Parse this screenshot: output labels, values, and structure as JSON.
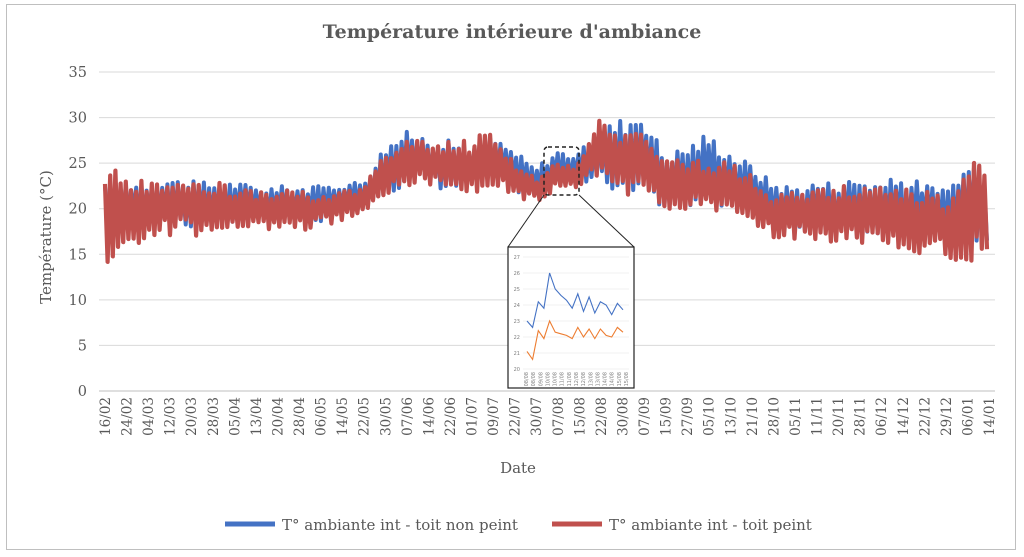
{
  "chart_data": {
    "type": "line",
    "title": "Température intérieure d'ambiance",
    "xlabel": "Date",
    "ylabel": "Température (°C)",
    "ylim": [
      0,
      35
    ],
    "yticks": [
      0,
      5,
      10,
      15,
      20,
      25,
      30,
      35
    ],
    "grid": true,
    "legend_position": "bottom",
    "x_tick_labels": [
      "16/02",
      "24/02",
      "04/03",
      "12/03",
      "20/03",
      "28/03",
      "05/04",
      "13/04",
      "20/04",
      "28/04",
      "06/05",
      "14/05",
      "22/05",
      "30/05",
      "07/06",
      "14/06",
      "22/06",
      "01/07",
      "09/07",
      "22/07",
      "30/07",
      "07/08",
      "15/08",
      "22/08",
      "30/08",
      "07/09",
      "15/09",
      "27/09",
      "05/10",
      "13/10",
      "21/10",
      "28/10",
      "05/11",
      "11/11",
      "20/11",
      "28/11",
      "06/12",
      "14/12",
      "22/12",
      "29/12",
      "06/01",
      "14/01"
    ],
    "series": [
      {
        "name": "T° ambiante int - toit non peint",
        "color": "#4472C4",
        "min": [
          18.5,
          18.5,
          18.5,
          18.0,
          18.0,
          18.0,
          18.5,
          18.5,
          18.5,
          18.5,
          18.5,
          19.0,
          20.0,
          21.5,
          22.5,
          22.5,
          22.0,
          22.0,
          23.0,
          22.0,
          21.0,
          22.5,
          22.5,
          22.5,
          21.5,
          21.5,
          20.0,
          20.0,
          20.0,
          20.0,
          19.5,
          18.0,
          17.5,
          17.5,
          17.5,
          17.0,
          17.0,
          17.0,
          17.0,
          16.5,
          16.0,
          16.0
        ],
        "max": [
          22.5,
          23.0,
          23.0,
          23.5,
          23.0,
          23.0,
          23.0,
          22.5,
          22.5,
          22.5,
          22.5,
          23.0,
          23.0,
          27.0,
          28.5,
          28.0,
          27.5,
          27.0,
          28.0,
          26.5,
          24.5,
          26.5,
          26.0,
          29.0,
          30.0,
          31.0,
          26.0,
          27.0,
          28.5,
          26.5,
          25.0,
          23.0,
          22.5,
          23.0,
          23.0,
          23.5,
          23.0,
          23.5,
          23.0,
          22.0,
          25.0,
          24.0
        ]
      },
      {
        "name": "T° ambiante int - toit peint",
        "color": "#C0504D",
        "min": [
          14.0,
          15.0,
          16.5,
          17.0,
          17.0,
          17.0,
          17.5,
          17.5,
          17.5,
          17.5,
          18.0,
          18.5,
          19.5,
          21.5,
          22.5,
          22.5,
          22.0,
          21.5,
          22.0,
          21.5,
          20.5,
          22.0,
          22.0,
          23.0,
          21.5,
          21.5,
          20.0,
          19.5,
          19.5,
          19.0,
          18.5,
          16.5,
          16.5,
          16.5,
          16.0,
          16.0,
          15.5,
          15.5,
          15.0,
          14.5,
          14.0,
          15.0
        ],
        "max": [
          24.5,
          24.0,
          23.5,
          23.5,
          23.0,
          23.0,
          22.5,
          22.0,
          22.0,
          22.0,
          21.5,
          22.0,
          22.5,
          26.0,
          27.5,
          27.5,
          27.5,
          27.5,
          29.0,
          25.0,
          23.5,
          25.0,
          25.0,
          30.5,
          28.0,
          29.5,
          25.5,
          25.5,
          25.5,
          25.0,
          24.0,
          22.0,
          22.0,
          22.0,
          22.5,
          22.5,
          22.5,
          22.5,
          22.0,
          21.5,
          24.5,
          26.0
        ]
      }
    ],
    "zoom_inset": {
      "yticks": [
        20,
        21,
        22,
        23,
        24,
        25,
        26,
        27
      ],
      "x_tick_labels": [
        "08/08",
        "08/08",
        "09/08",
        "10/08",
        "10/08",
        "11/08",
        "11/08",
        "12/08",
        "12/08",
        "13/08",
        "13/08",
        "14/08",
        "14/08",
        "15/08",
        "15/08"
      ],
      "blue": [
        23.0,
        22.6,
        24.2,
        23.8,
        26.0,
        25.0,
        24.6,
        24.3,
        23.8,
        24.7,
        23.6,
        24.5,
        23.5,
        24.2,
        24.0,
        23.4,
        24.1,
        23.7
      ],
      "orange": [
        21.1,
        20.6,
        22.4,
        21.9,
        23.0,
        22.3,
        22.2,
        22.1,
        21.9,
        22.6,
        22.0,
        22.5,
        21.9,
        22.5,
        22.1,
        22.0,
        22.6,
        22.3
      ]
    }
  }
}
